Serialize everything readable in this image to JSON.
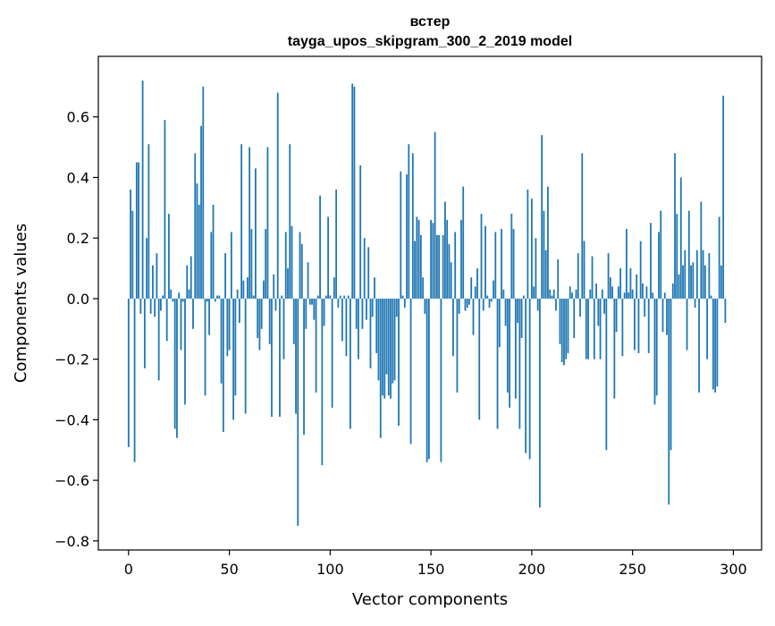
{
  "chart_data": {
    "type": "bar",
    "title_line1": "встер",
    "title_line2": "tayga_upos_skipgram_300_2_2019 model",
    "xlabel": "Vector components",
    "ylabel": "Components values",
    "xlim": [
      -15,
      314
    ],
    "ylim": [
      -0.83,
      0.8
    ],
    "xticks": [
      0,
      50,
      100,
      150,
      200,
      250,
      300
    ],
    "xtick_labels": [
      "0",
      "50",
      "100",
      "150",
      "200",
      "250",
      "300"
    ],
    "yticks": [
      -0.8,
      -0.6,
      -0.4,
      -0.2,
      0.0,
      0.2,
      0.4,
      0.6
    ],
    "ytick_labels": [
      "−0.8",
      "−0.6",
      "−0.4",
      "−0.2",
      "0.0",
      "0.2",
      "0.4",
      "0.6"
    ],
    "bar_color": "#1f77b4",
    "values": [
      -0.49,
      0.36,
      0.29,
      -0.54,
      0.45,
      0.45,
      -0.05,
      0.72,
      -0.23,
      0.2,
      0.51,
      -0.05,
      0.11,
      -0.06,
      0.15,
      -0.27,
      -0.04,
      0.01,
      0.59,
      -0.14,
      0.28,
      0.03,
      -0.01,
      -0.43,
      -0.46,
      0.02,
      -0.17,
      -0.01,
      -0.35,
      0.11,
      0.03,
      0.14,
      -0.1,
      0.48,
      0.38,
      0.31,
      0.57,
      0.7,
      -0.32,
      -0.01,
      -0.12,
      0.22,
      0.31,
      -0.01,
      0.01,
      0.01,
      -0.28,
      -0.44,
      0.15,
      -0.19,
      -0.17,
      0.22,
      -0.4,
      -0.32,
      0.03,
      -0.08,
      0.51,
      0.06,
      -0.38,
      0.07,
      0.5,
      0.23,
      0.01,
      0.43,
      -0.13,
      -0.17,
      -0.1,
      0.06,
      0.23,
      0.5,
      -0.15,
      -0.39,
      0.08,
      -0.04,
      0.68,
      -0.39,
      0.01,
      -0.2,
      0.22,
      0.1,
      0.51,
      0.24,
      -0.15,
      -0.38,
      -0.75,
      0.22,
      0.18,
      -0.45,
      -0.1,
      0.12,
      -0.02,
      -0.02,
      -0.07,
      -0.31,
      0.01,
      0.34,
      -0.55,
      -0.09,
      0.01,
      0.27,
      0.01,
      -0.36,
      0.07,
      0.36,
      -0.03,
      0.01,
      -0.14,
      0.01,
      -0.19,
      0.01,
      -0.43,
      0.71,
      0.7,
      -0.1,
      -0.2,
      0.44,
      -0.1,
      0.2,
      -0.07,
      0.17,
      -0.23,
      -0.06,
      0.07,
      -0.18,
      -0.27,
      -0.46,
      -0.32,
      -0.33,
      -0.25,
      -0.32,
      -0.33,
      -0.28,
      -0.27,
      -0.06,
      -0.42,
      0.42,
      0.01,
      -0.03,
      0.41,
      0.51,
      -0.48,
      0.48,
      0.19,
      0.27,
      0.26,
      0.21,
      0.07,
      -0.05,
      -0.54,
      -0.53,
      0.26,
      0.25,
      0.55,
      0.21,
      0.21,
      -0.54,
      0.21,
      0.32,
      0.26,
      0.18,
      0.12,
      -0.19,
      0.22,
      -0.31,
      -0.05,
      0.26,
      0.37,
      -0.04,
      -0.03,
      -0.02,
      0.07,
      -0.12,
      0.04,
      0.1,
      -0.4,
      0.28,
      -0.04,
      0.24,
      0.01,
      -0.03,
      -0.01,
      0.06,
      0.22,
      -0.43,
      -0.16,
      0.23,
      0.03,
      -0.09,
      -0.31,
      -0.36,
      0.28,
      0.23,
      -0.33,
      -0.08,
      -0.43,
      -0.13,
      0.01,
      -0.51,
      0.36,
      -0.53,
      0.33,
      0.04,
      0.2,
      -0.04,
      -0.69,
      0.54,
      0.29,
      0.16,
      0.37,
      0.03,
      0.01,
      0.03,
      -0.04,
      0.13,
      -0.15,
      -0.21,
      -0.22,
      -0.2,
      -0.18,
      0.04,
      0.02,
      -0.13,
      0.03,
      0.15,
      -0.06,
      0.48,
      0.19,
      -0.2,
      -0.2,
      0.03,
      0.14,
      -0.2,
      0.05,
      -0.09,
      -0.2,
      0.03,
      -0.05,
      -0.5,
      0.15,
      0.07,
      0.04,
      -0.33,
      -0.11,
      0.04,
      0.1,
      -0.19,
      0.02,
      0.23,
      0.02,
      0.1,
      0.03,
      -0.17,
      0.08,
      -0.18,
      0.19,
      0.05,
      -0.06,
      0.04,
      -0.18,
      0.25,
      0.02,
      -0.35,
      -0.32,
      0.22,
      0.29,
      -0.11,
      0.02,
      -0.12,
      -0.68,
      -0.5,
      0.05,
      0.48,
      0.28,
      0.08,
      0.4,
      0.11,
      0.16,
      -0.17,
      0.29,
      0.11,
      0.12,
      -0.03,
      0.16,
      -0.31,
      0.32,
      0.16,
      0.11,
      -0.2,
      0.15,
      0.01,
      -0.3,
      -0.31,
      -0.29,
      0.27,
      0.11,
      0.67,
      -0.08
    ]
  }
}
